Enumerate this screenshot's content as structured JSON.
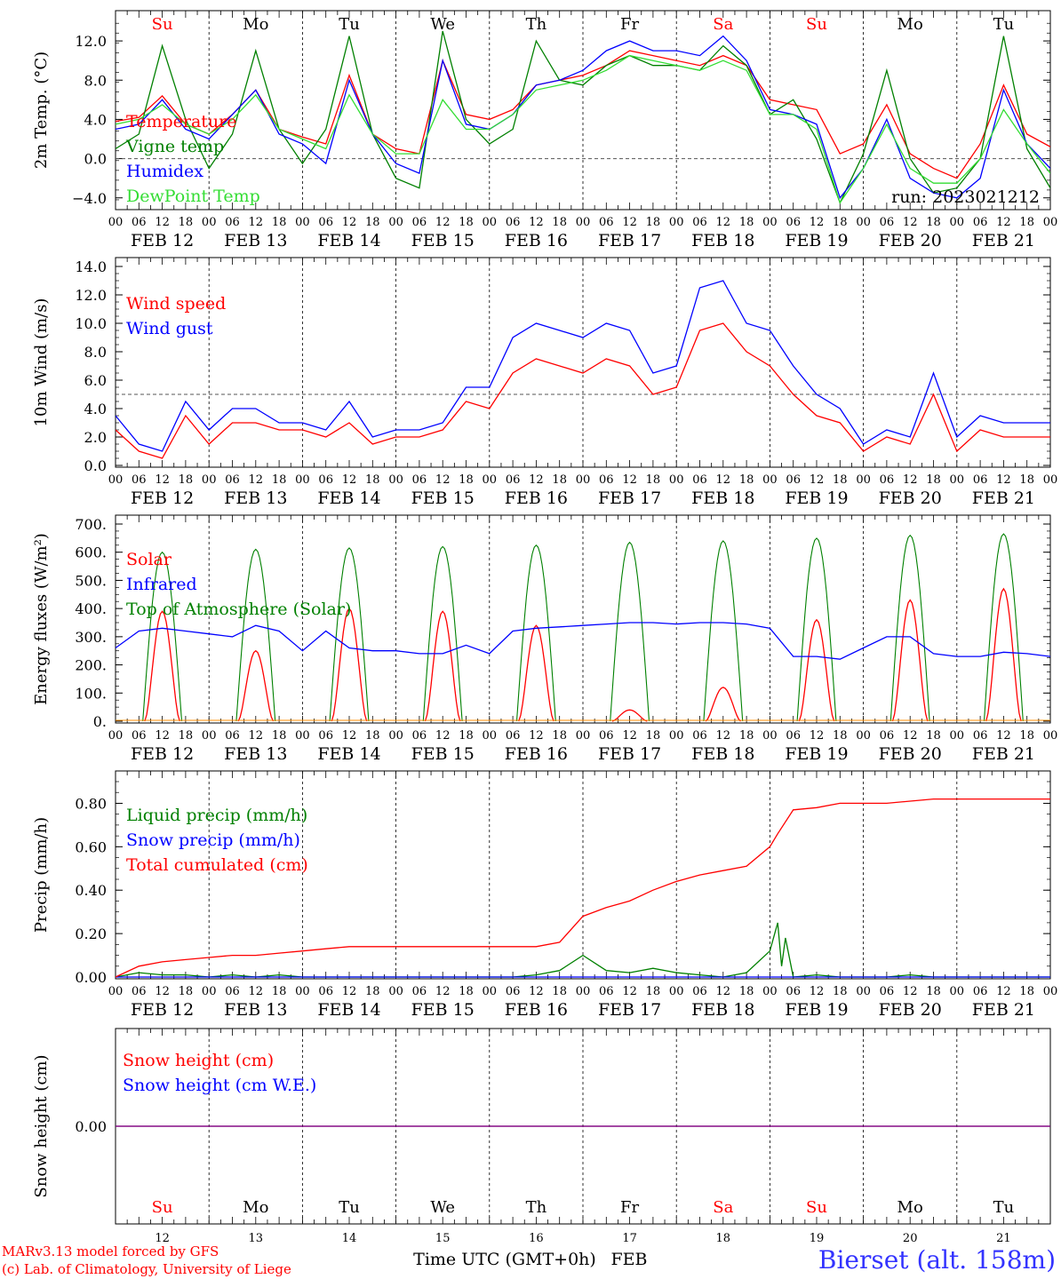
{
  "x_axis": {
    "hour_labels": [
      "00",
      "06",
      "12",
      "18"
    ],
    "date_labels": [
      "FEB 12",
      "FEB 13",
      "FEB 14",
      "FEB 15",
      "FEB 16",
      "FEB 17",
      "FEB 18",
      "FEB 19",
      "FEB 20",
      "FEB 21"
    ],
    "day_names": [
      "Su",
      "Mo",
      "Tu",
      "We",
      "Th",
      "Fr",
      "Sa",
      "Su",
      "Mo",
      "Tu"
    ],
    "day_name_colors": [
      "#ff0000",
      "#000000",
      "#000000",
      "#000000",
      "#000000",
      "#000000",
      "#ff0000",
      "#ff0000",
      "#000000",
      "#000000"
    ],
    "day_numbers": [
      "12",
      "13",
      "14",
      "15",
      "16",
      "17",
      "18",
      "19",
      "20",
      "21"
    ],
    "month": "FEB",
    "title": "Time UTC (GMT+0h)"
  },
  "footer": {
    "model_line": "MARv3.13 model forced by GFS",
    "credit_line": "(c) Lab. of Climatology, University of Liege",
    "station": "Bierset (alt. 158m)"
  },
  "run_label": "run: 2023021212",
  "colors": {
    "red": "#ff0000",
    "green": "#008000",
    "blue": "#0000ff",
    "lightgreen": "#33dd33",
    "purple": "#800080"
  },
  "chart_data": [
    {
      "type": "line",
      "ylabel": "2m Temp. (°C)",
      "ylim": [
        -5.2,
        14.0
      ],
      "yticks": [
        -4.0,
        0.0,
        4.0,
        8.0,
        12.0
      ],
      "ytick_labels": [
        "−4.0",
        "0.0",
        "4.0",
        "8.0",
        "12.0"
      ],
      "reference_line": 0.0,
      "x_unit": "hours since FEB 12 00 UTC",
      "series": [
        {
          "name": "Temperature",
          "color": "#ff0000",
          "x": [
            0,
            6,
            12,
            18,
            24,
            30,
            36,
            42,
            48,
            54,
            60,
            66,
            72,
            78,
            84,
            90,
            96,
            102,
            108,
            114,
            120,
            126,
            132,
            138,
            144,
            150,
            156,
            162,
            168,
            174,
            180,
            186,
            192,
            198,
            204,
            210,
            216,
            222,
            228,
            234,
            240
          ],
          "y": [
            3.8,
            4.2,
            6.4,
            3.5,
            2.5,
            4.5,
            7.0,
            3.0,
            2.2,
            1.5,
            8.5,
            2.5,
            1.0,
            0.5,
            10.0,
            4.5,
            4.0,
            5.0,
            7.5,
            8.0,
            8.5,
            9.5,
            11.0,
            10.5,
            10.0,
            9.5,
            10.5,
            9.5,
            6.0,
            5.5,
            5.0,
            0.5,
            1.5,
            5.5,
            0.5,
            -1.0,
            -2.0,
            1.5,
            7.5,
            2.5,
            1.2
          ]
        },
        {
          "name": "Vigne temp",
          "color": "#008000",
          "x": [
            0,
            6,
            12,
            18,
            24,
            30,
            36,
            42,
            48,
            54,
            60,
            66,
            72,
            78,
            84,
            90,
            96,
            102,
            108,
            114,
            120,
            126,
            132,
            138,
            144,
            150,
            156,
            162,
            168,
            174,
            180,
            186,
            192,
            198,
            204,
            210,
            216,
            222,
            228,
            234,
            240
          ],
          "y": [
            1.0,
            2.5,
            11.5,
            4.0,
            -1.0,
            2.5,
            11.0,
            3.0,
            -0.5,
            3.0,
            12.5,
            2.5,
            -2.0,
            -3.0,
            13.0,
            4.0,
            1.5,
            3.0,
            12.0,
            8.0,
            7.5,
            9.5,
            10.5,
            9.5,
            9.5,
            9.0,
            11.5,
            9.5,
            4.5,
            6.0,
            2.0,
            -4.5,
            0.5,
            9.0,
            0.0,
            -3.5,
            -3.0,
            0.0,
            12.5,
            1.0,
            -3.0
          ]
        },
        {
          "name": "Humidex",
          "color": "#0000ff",
          "x": [
            0,
            6,
            12,
            18,
            24,
            30,
            36,
            42,
            48,
            54,
            60,
            66,
            72,
            78,
            84,
            90,
            96,
            102,
            108,
            114,
            120,
            126,
            132,
            138,
            144,
            150,
            156,
            162,
            168,
            174,
            180,
            186,
            192,
            198,
            204,
            210,
            216,
            222,
            228,
            234,
            240
          ],
          "y": [
            3.0,
            3.5,
            6.0,
            3.0,
            2.0,
            4.5,
            7.0,
            2.5,
            1.5,
            -0.5,
            8.0,
            2.5,
            -0.5,
            -1.5,
            10.0,
            3.5,
            3.0,
            4.5,
            7.5,
            8.0,
            9.0,
            11.0,
            12.0,
            11.0,
            11.0,
            10.5,
            12.5,
            10.0,
            5.0,
            4.5,
            3.5,
            -4.0,
            -1.0,
            4.0,
            -2.0,
            -3.5,
            -4.0,
            -2.0,
            7.0,
            1.5,
            -1.0
          ]
        },
        {
          "name": "DewPoint Temp",
          "color": "#33dd33",
          "x": [
            0,
            6,
            12,
            18,
            24,
            30,
            36,
            42,
            48,
            54,
            60,
            66,
            72,
            78,
            84,
            90,
            96,
            102,
            108,
            114,
            120,
            126,
            132,
            138,
            144,
            150,
            156,
            162,
            168,
            174,
            180,
            186,
            192,
            198,
            204,
            210,
            216,
            222,
            228,
            234,
            240
          ],
          "y": [
            3.5,
            4.0,
            5.5,
            3.5,
            2.5,
            4.0,
            6.5,
            3.0,
            2.0,
            1.0,
            6.5,
            2.5,
            0.5,
            0.5,
            6.0,
            3.0,
            3.0,
            4.5,
            7.0,
            7.5,
            8.0,
            9.0,
            10.5,
            10.0,
            9.5,
            9.0,
            10.0,
            9.0,
            4.5,
            4.5,
            3.0,
            -4.5,
            -1.0,
            3.5,
            -1.0,
            -2.5,
            -2.5,
            0.0,
            5.0,
            1.5,
            -1.5
          ]
        }
      ]
    },
    {
      "type": "line",
      "ylabel": "10m Wind (m/s)",
      "ylim": [
        0.0,
        14.0
      ],
      "yticks": [
        0.0,
        2.0,
        4.0,
        6.0,
        8.0,
        10.0,
        12.0,
        14.0
      ],
      "ytick_labels": [
        "0.0",
        "2.0",
        "4.0",
        "6.0",
        "8.0",
        "10.0",
        "12.0",
        "14.0"
      ],
      "reference_line": 5.0,
      "x_unit": "hours since FEB 12 00 UTC",
      "series": [
        {
          "name": "Wind speed",
          "color": "#ff0000",
          "x": [
            0,
            6,
            12,
            18,
            24,
            30,
            36,
            42,
            48,
            54,
            60,
            66,
            72,
            78,
            84,
            90,
            96,
            102,
            108,
            114,
            120,
            126,
            132,
            138,
            144,
            150,
            156,
            162,
            168,
            174,
            180,
            186,
            192,
            198,
            204,
            210,
            216,
            222,
            228,
            234,
            240
          ],
          "y": [
            2.5,
            1.0,
            0.5,
            3.5,
            1.5,
            3.0,
            3.0,
            2.5,
            2.5,
            2.0,
            3.0,
            1.5,
            2.0,
            2.0,
            2.5,
            4.5,
            4.0,
            6.5,
            7.5,
            7.0,
            6.5,
            7.5,
            7.0,
            5.0,
            5.5,
            9.5,
            10.0,
            8.0,
            7.0,
            5.0,
            3.5,
            3.0,
            1.0,
            2.0,
            1.5,
            5.0,
            1.0,
            2.5,
            2.0,
            2.0,
            2.0
          ]
        },
        {
          "name": "Wind gust",
          "color": "#0000ff",
          "x": [
            0,
            6,
            12,
            18,
            24,
            30,
            36,
            42,
            48,
            54,
            60,
            66,
            72,
            78,
            84,
            90,
            96,
            102,
            108,
            114,
            120,
            126,
            132,
            138,
            144,
            150,
            156,
            162,
            168,
            174,
            180,
            186,
            192,
            198,
            204,
            210,
            216,
            222,
            228,
            234,
            240
          ],
          "y": [
            3.5,
            1.5,
            1.0,
            4.5,
            2.5,
            4.0,
            4.0,
            3.0,
            3.0,
            2.5,
            4.5,
            2.0,
            2.5,
            2.5,
            3.0,
            5.5,
            5.5,
            9.0,
            10.0,
            9.5,
            9.0,
            10.0,
            9.5,
            6.5,
            7.0,
            12.5,
            13.0,
            10.0,
            9.5,
            7.0,
            5.0,
            4.0,
            1.5,
            2.5,
            2.0,
            6.5,
            2.0,
            3.5,
            3.0,
            3.0,
            3.0
          ]
        }
      ]
    },
    {
      "type": "line",
      "ylabel": "Energy fluxes (W/m²)",
      "ylim": [
        0,
        700
      ],
      "yticks": [
        0,
        100,
        200,
        300,
        400,
        500,
        600,
        700
      ],
      "ytick_labels": [
        "0.",
        "100.",
        "200.",
        "300.",
        "400.",
        "500.",
        "600.",
        "700."
      ],
      "x_unit": "hours since FEB 12 00 UTC",
      "solar_peaks": [
        390,
        250,
        400,
        390,
        340,
        40,
        120,
        360,
        430,
        470
      ],
      "toa_peaks": [
        600,
        610,
        615,
        620,
        625,
        635,
        640,
        650,
        660,
        665
      ],
      "infrared": {
        "x": [
          0,
          6,
          12,
          18,
          24,
          30,
          36,
          42,
          48,
          54,
          60,
          66,
          72,
          78,
          84,
          90,
          96,
          102,
          108,
          114,
          120,
          126,
          132,
          138,
          144,
          150,
          156,
          162,
          168,
          174,
          180,
          186,
          192,
          198,
          204,
          210,
          216,
          222,
          228,
          234,
          240
        ],
        "y": [
          260,
          320,
          330,
          320,
          310,
          300,
          340,
          320,
          250,
          320,
          260,
          250,
          250,
          240,
          240,
          270,
          240,
          320,
          330,
          335,
          340,
          345,
          350,
          350,
          345,
          350,
          350,
          345,
          330,
          230,
          230,
          220,
          260,
          300,
          300,
          240,
          230,
          230,
          245,
          240,
          230
        ]
      },
      "series": [
        {
          "name": "Solar",
          "color": "#ff0000"
        },
        {
          "name": "Infrared",
          "color": "#0000ff"
        },
        {
          "name": "Top of Atmosphere (Solar)",
          "color": "#008000"
        }
      ]
    },
    {
      "type": "line",
      "ylabel": "Precip (mm/h)",
      "ylim": [
        0.0,
        0.9
      ],
      "yticks": [
        0.0,
        0.2,
        0.4,
        0.6,
        0.8
      ],
      "ytick_labels": [
        "0.00",
        "0.20",
        "0.40",
        "0.60",
        "0.80"
      ],
      "x_unit": "hours since FEB 12 00 UTC",
      "series": [
        {
          "name": "Liquid precip (mm/h)",
          "color": "#008000",
          "x": [
            0,
            6,
            12,
            18,
            24,
            30,
            36,
            42,
            48,
            54,
            60,
            66,
            72,
            78,
            84,
            90,
            96,
            102,
            108,
            114,
            120,
            126,
            132,
            138,
            144,
            150,
            156,
            162,
            168,
            170,
            171,
            172,
            174,
            180,
            186,
            192,
            198,
            204,
            210,
            216,
            222,
            228,
            234,
            240
          ],
          "y": [
            0,
            0.02,
            0.01,
            0.01,
            0.0,
            0.01,
            0.0,
            0.01,
            0.0,
            0.0,
            0.0,
            0.0,
            0.0,
            0.0,
            0.0,
            0.0,
            0.0,
            0.0,
            0.01,
            0.03,
            0.1,
            0.03,
            0.02,
            0.04,
            0.02,
            0.01,
            0.0,
            0.02,
            0.12,
            0.25,
            0.05,
            0.18,
            0.0,
            0.01,
            0.0,
            0.0,
            0.0,
            0.01,
            0.0,
            0.0,
            0.0,
            0.0,
            0.0,
            0.0
          ]
        },
        {
          "name": "Snow precip (mm/h)",
          "color": "#0000ff",
          "x": [
            0,
            240
          ],
          "y": [
            0,
            0
          ]
        },
        {
          "name": "Total cumulated (cm)",
          "color": "#ff0000",
          "x": [
            0,
            6,
            12,
            18,
            24,
            30,
            36,
            42,
            48,
            54,
            60,
            66,
            72,
            78,
            84,
            90,
            96,
            102,
            108,
            114,
            120,
            126,
            132,
            138,
            144,
            150,
            156,
            162,
            168,
            170,
            174,
            180,
            186,
            192,
            198,
            204,
            210,
            216,
            222,
            228,
            234,
            240
          ],
          "y": [
            0,
            0.05,
            0.07,
            0.08,
            0.09,
            0.1,
            0.1,
            0.11,
            0.12,
            0.13,
            0.14,
            0.14,
            0.14,
            0.14,
            0.14,
            0.14,
            0.14,
            0.14,
            0.14,
            0.16,
            0.28,
            0.32,
            0.35,
            0.4,
            0.44,
            0.47,
            0.49,
            0.51,
            0.6,
            0.66,
            0.77,
            0.78,
            0.8,
            0.8,
            0.8,
            0.81,
            0.82,
            0.82,
            0.82,
            0.82,
            0.82,
            0.82
          ]
        }
      ]
    },
    {
      "type": "line",
      "ylabel": "Snow height (cm)",
      "ylim": [
        -1,
        1
      ],
      "yticks": [
        0.0
      ],
      "ytick_labels": [
        "0.00"
      ],
      "x_unit": "hours since FEB 12 00 UTC",
      "series": [
        {
          "name": "Snow height (cm)",
          "color": "#ff0000",
          "x": [
            0,
            240
          ],
          "y": [
            0,
            0
          ]
        },
        {
          "name": "Snow height (cm W.E.)",
          "color": "#0000ff",
          "x": [
            0,
            240
          ],
          "y": [
            0,
            0
          ]
        }
      ]
    }
  ]
}
